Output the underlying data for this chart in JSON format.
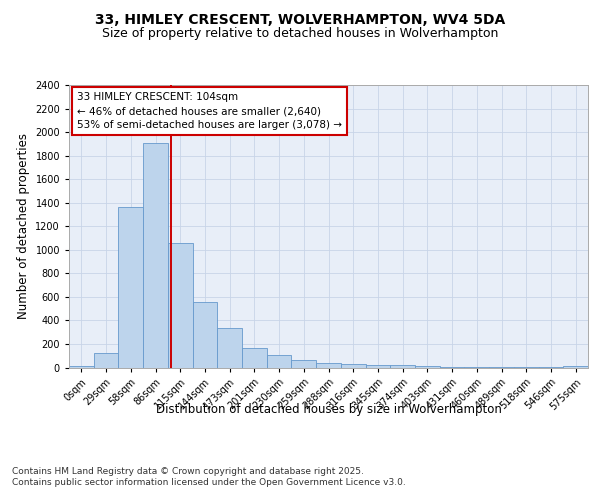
{
  "title": "33, HIMLEY CRESCENT, WOLVERHAMPTON, WV4 5DA",
  "subtitle": "Size of property relative to detached houses in Wolverhampton",
  "xlabel": "Distribution of detached houses by size in Wolverhampton",
  "ylabel": "Number of detached properties",
  "bin_labels": [
    "0sqm",
    "29sqm",
    "58sqm",
    "86sqm",
    "115sqm",
    "144sqm",
    "173sqm",
    "201sqm",
    "230sqm",
    "259sqm",
    "288sqm",
    "316sqm",
    "345sqm",
    "374sqm",
    "403sqm",
    "431sqm",
    "460sqm",
    "489sqm",
    "518sqm",
    "546sqm",
    "575sqm"
  ],
  "bar_values": [
    10,
    120,
    1360,
    1910,
    1060,
    560,
    335,
    165,
    110,
    60,
    35,
    30,
    25,
    20,
    15,
    5,
    5,
    3,
    2,
    2,
    10
  ],
  "bar_color": "#bdd4ec",
  "bar_edgecolor": "#6699cc",
  "grid_color": "#c8d4e8",
  "background_color": "#e8eef8",
  "vline_x_index": 3.62,
  "annotation_text": "33 HIMLEY CRESCENT: 104sqm\n← 46% of detached houses are smaller (2,640)\n53% of semi-detached houses are larger (3,078) →",
  "annotation_box_color": "#ffffff",
  "annotation_border_color": "#cc0000",
  "vline_color": "#cc0000",
  "ylim": [
    0,
    2400
  ],
  "yticks": [
    0,
    200,
    400,
    600,
    800,
    1000,
    1200,
    1400,
    1600,
    1800,
    2000,
    2200,
    2400
  ],
  "footer_text": "Contains HM Land Registry data © Crown copyright and database right 2025.\nContains public sector information licensed under the Open Government Licence v3.0.",
  "title_fontsize": 10,
  "subtitle_fontsize": 9,
  "axis_label_fontsize": 8.5,
  "tick_fontsize": 7,
  "footer_fontsize": 6.5,
  "annotation_fontsize": 7.5
}
